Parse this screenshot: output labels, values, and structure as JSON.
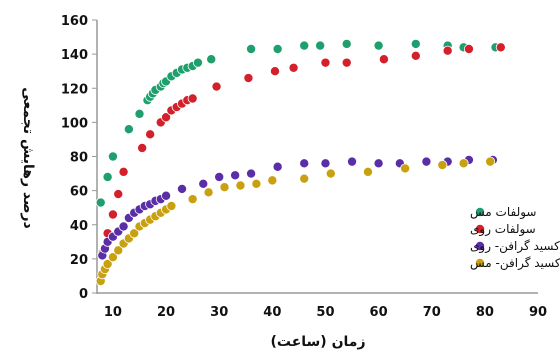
{
  "chart_data": {
    "type": "scatter",
    "xlabel": "زمان (ساعت)",
    "ylabel": "درصد رهایش تجمعی",
    "xlim": [
      7,
      90
    ],
    "ylim": [
      0,
      160
    ],
    "x_ticks": [
      10,
      20,
      30,
      40,
      50,
      60,
      70,
      80,
      90
    ],
    "y_ticks": [
      0,
      20,
      40,
      60,
      80,
      100,
      120,
      140,
      160
    ],
    "grid": false,
    "legend_position": "right",
    "series": [
      {
        "name": "سولفات مس",
        "color": "#1f9e6e",
        "points": [
          [
            7.7,
            53
          ],
          [
            9,
            68
          ],
          [
            10,
            80
          ],
          [
            13,
            96
          ],
          [
            15,
            105
          ],
          [
            16.5,
            113
          ],
          [
            17,
            115
          ],
          [
            17.5,
            117
          ],
          [
            18,
            119
          ],
          [
            19,
            121
          ],
          [
            19.5,
            123
          ],
          [
            20,
            124
          ],
          [
            21,
            127
          ],
          [
            22,
            129
          ],
          [
            23,
            131
          ],
          [
            24,
            132
          ],
          [
            25,
            133
          ],
          [
            26,
            135
          ],
          [
            28.5,
            137
          ],
          [
            36,
            143
          ],
          [
            41,
            143
          ],
          [
            46,
            145
          ],
          [
            49,
            145
          ],
          [
            54,
            146
          ],
          [
            60,
            145
          ],
          [
            67,
            146
          ],
          [
            73,
            145
          ],
          [
            76,
            144
          ],
          [
            82,
            144
          ]
        ]
      },
      {
        "name": "سولفات روی",
        "color": "#d4202a",
        "points": [
          [
            8,
            23
          ],
          [
            9,
            35
          ],
          [
            10,
            46
          ],
          [
            11,
            58
          ],
          [
            12,
            71
          ],
          [
            15.5,
            85
          ],
          [
            17,
            93
          ],
          [
            19,
            100
          ],
          [
            20,
            103
          ],
          [
            21,
            107
          ],
          [
            22,
            109
          ],
          [
            23,
            111
          ],
          [
            24,
            113
          ],
          [
            25,
            114
          ],
          [
            29.5,
            121
          ],
          [
            35.5,
            126
          ],
          [
            40.5,
            130
          ],
          [
            44,
            132
          ],
          [
            50,
            135
          ],
          [
            54,
            135
          ],
          [
            61,
            137
          ],
          [
            67,
            139
          ],
          [
            73,
            142
          ],
          [
            77,
            143
          ],
          [
            83,
            144
          ]
        ]
      },
      {
        "name": "اکسید گرافن- روی",
        "color": "#5a2ea6",
        "points": [
          [
            8,
            22
          ],
          [
            8.5,
            26
          ],
          [
            9,
            30
          ],
          [
            10,
            33
          ],
          [
            11,
            36
          ],
          [
            12,
            39
          ],
          [
            13,
            44
          ],
          [
            14,
            47
          ],
          [
            15,
            49
          ],
          [
            16,
            51
          ],
          [
            17,
            52
          ],
          [
            18,
            54
          ],
          [
            19,
            55
          ],
          [
            20,
            57
          ],
          [
            23,
            61
          ],
          [
            27,
            64
          ],
          [
            30,
            68
          ],
          [
            33,
            69
          ],
          [
            36,
            70
          ],
          [
            41,
            74
          ],
          [
            46,
            76
          ],
          [
            50,
            76
          ],
          [
            55,
            77
          ],
          [
            60,
            76
          ],
          [
            64,
            76
          ],
          [
            69,
            77
          ],
          [
            73,
            77
          ],
          [
            77,
            78
          ],
          [
            81.5,
            78
          ]
        ]
      },
      {
        "name": "اکسید گرافن- مس",
        "color": "#c8a010",
        "points": [
          [
            7.7,
            7
          ],
          [
            8,
            11
          ],
          [
            8.5,
            14
          ],
          [
            9,
            17
          ],
          [
            10,
            21
          ],
          [
            11,
            25
          ],
          [
            12,
            29
          ],
          [
            13,
            32
          ],
          [
            14,
            35
          ],
          [
            15,
            39
          ],
          [
            16,
            41
          ],
          [
            17,
            43
          ],
          [
            18,
            45
          ],
          [
            19,
            47
          ],
          [
            20,
            49
          ],
          [
            21,
            51
          ],
          [
            25,
            55
          ],
          [
            28,
            59
          ],
          [
            31,
            62
          ],
          [
            34,
            63
          ],
          [
            37,
            64
          ],
          [
            40,
            66
          ],
          [
            46,
            67
          ],
          [
            51,
            70
          ],
          [
            58,
            71
          ],
          [
            65,
            73
          ],
          [
            72,
            75
          ],
          [
            76,
            76
          ],
          [
            81,
            77
          ]
        ]
      }
    ]
  }
}
